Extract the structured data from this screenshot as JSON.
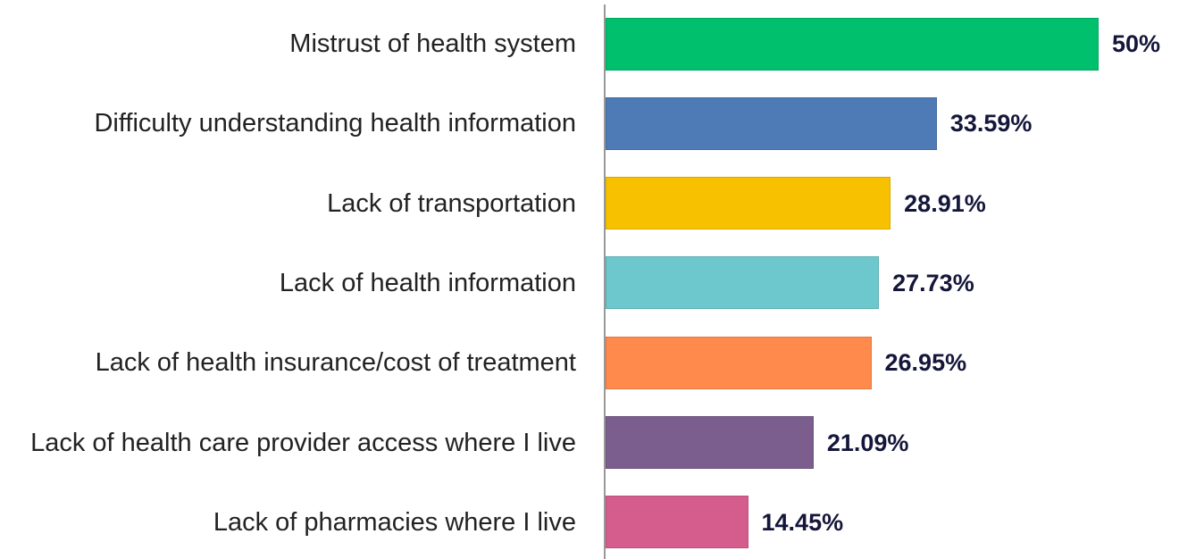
{
  "chart_data": {
    "type": "bar",
    "orientation": "horizontal",
    "categories": [
      "Mistrust of health system",
      "Difficulty understanding health information",
      "Lack of transportation",
      "Lack of health information",
      "Lack of health insurance/cost of treatment",
      "Lack of health care provider access where I live",
      "Lack of pharmacies where I live"
    ],
    "values": [
      50,
      33.59,
      28.91,
      27.73,
      26.95,
      21.09,
      14.45
    ],
    "value_labels": [
      "50%",
      "33.59%",
      "28.91%",
      "27.73%",
      "26.95%",
      "21.09%",
      "14.45%"
    ],
    "colors": [
      "#00c06e",
      "#4e7bb5",
      "#f7c100",
      "#6cc8cc",
      "#ff8a4c",
      "#7b5e8e",
      "#d45d8e"
    ]
  }
}
